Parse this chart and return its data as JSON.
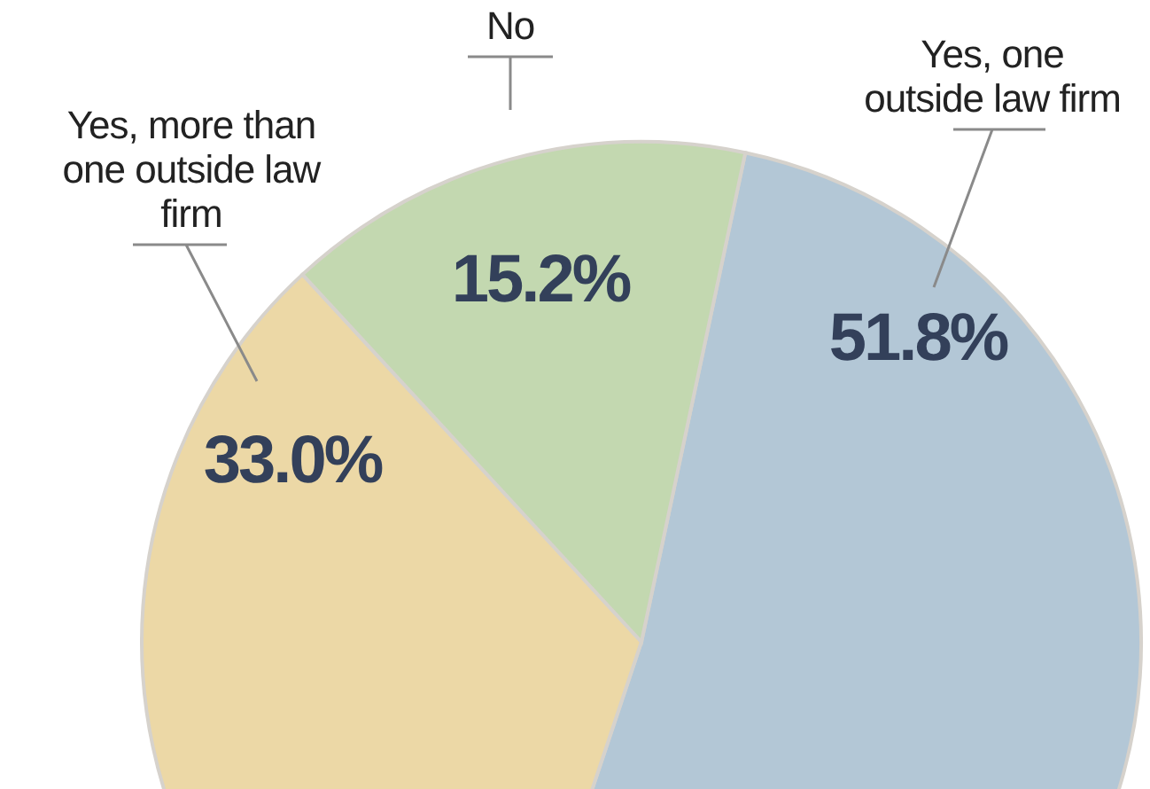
{
  "chart_data": {
    "type": "pie",
    "categories": [
      "Yes, one outside law firm",
      "Yes, more than one outside law firm",
      "No"
    ],
    "values": [
      51.8,
      33.0,
      15.2
    ],
    "value_labels": [
      "51.8%",
      "33.0%",
      "15.2%"
    ],
    "colors": [
      "#b3c7d6",
      "#ecd8a6",
      "#c3d8b0"
    ],
    "legend": false
  }
}
